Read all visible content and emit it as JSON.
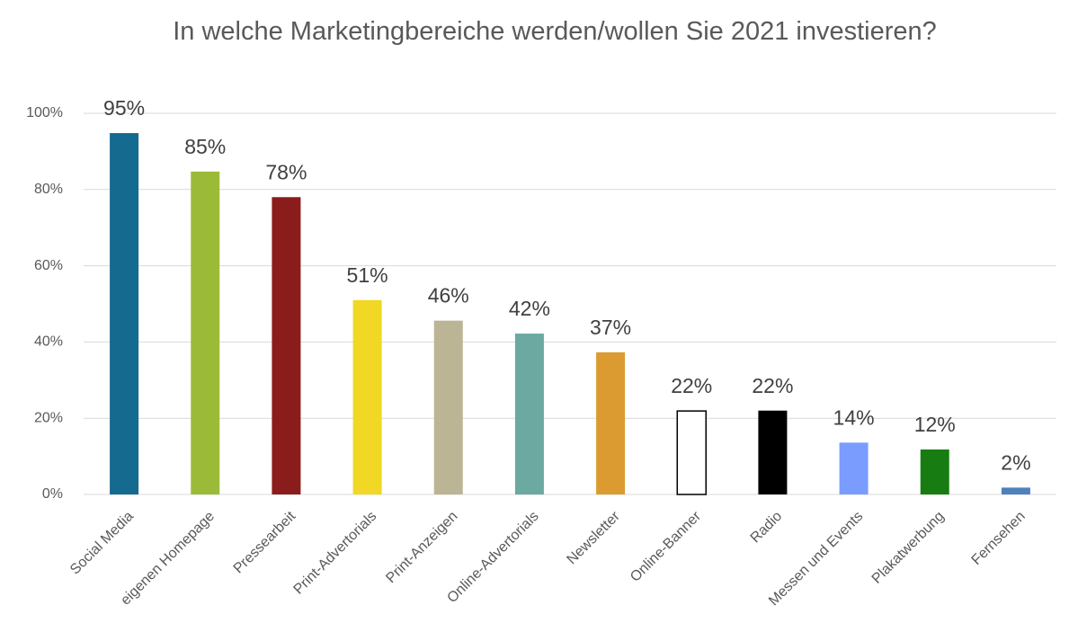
{
  "chart_data": {
    "type": "bar",
    "title": "In welche Marketingbereiche werden/wollen Sie 2021 investieren?",
    "categories": [
      "Social Media",
      "eigenen Homepage",
      "Pressearbeit",
      "Print-Advertorials",
      "Print-Anzeigen",
      "Online-Advertorials",
      "Newsletter",
      "Online-Banner",
      "Radio",
      "Messen und Events",
      "Plakatwerbung",
      "Fernsehen"
    ],
    "values": [
      94.8,
      84.7,
      78.0,
      51.0,
      45.6,
      42.2,
      37.3,
      21.9,
      22.0,
      13.6,
      11.8,
      1.8
    ],
    "value_labels": [
      "95%",
      "85%",
      "78%",
      "51%",
      "46%",
      "42%",
      "37%",
      "22%",
      "22%",
      "14%",
      "12%",
      "2%"
    ],
    "colors": [
      "#156a8f",
      "#9bbb38",
      "#8b1c1c",
      "#f0d824",
      "#bbb596",
      "#6ca9a0",
      "#dc9b30",
      "#ffffff",
      "#000000",
      "#7b9cff",
      "#177d12",
      "#4f81bd"
    ],
    "ylim": [
      0,
      100
    ],
    "yticks": [
      {
        "value": 0,
        "label": "0%"
      },
      {
        "value": 20,
        "label": "20%"
      },
      {
        "value": 40,
        "label": "40%"
      },
      {
        "value": 60,
        "label": "60%"
      },
      {
        "value": 80,
        "label": "80%"
      },
      {
        "value": 100,
        "label": "100%"
      }
    ],
    "grid": true
  }
}
